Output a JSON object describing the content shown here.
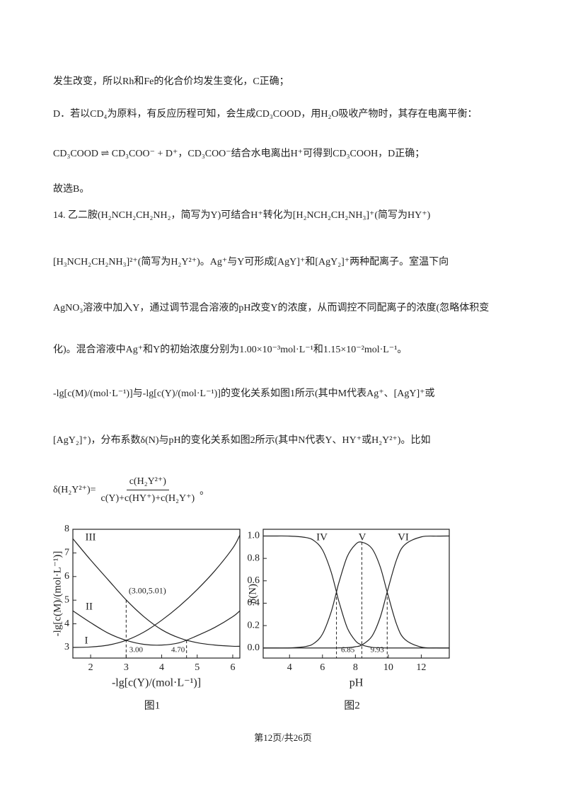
{
  "text": {
    "lines": [
      "发生改变，所以Rh和Fe的化合价均发生变化，C正确；",
      "D．若以CD₄为原料，有反应历程可知，会生成CD₃COOD，用H₂O吸收产物时，其存在电离平衡：",
      "CD₃COOD ⇌ CD₃COO⁻ + D⁺，CD₃COO⁻结合水电离出H⁺可得到CD₃COOH，D正确；",
      "故选B。",
      "14. 乙二胺(H₂NCH₂CH₂NH₂，简写为Y)可结合H⁺转化为[H₂NCH₂CH₂NH₃]⁺(简写为HY⁺)",
      "[H₃NCH₂CH₂NH₃]²⁺(简写为H₂Y²⁺)。Ag⁺与Y可形成[AgY]⁺和[AgY₂]⁺两种配离子。室温下向",
      "AgNO₃溶液中加入Y，通过调节混合溶液的pH改变Y的浓度，从而调控不同配离子的浓度(忽略体积变",
      "化)。混合溶液中Ag⁺和Y的初始浓度分别为1.00×10⁻³mol·L⁻¹和1.15×10⁻²mol·L⁻¹。",
      "-lg[c(M)/(mol·L⁻¹)]与-lg[c(Y)/(mol·L⁻¹)]的变化关系如图1所示(其中M代表Ag⁺、[AgY]⁺或",
      "[AgY₂]⁺)，分布系数δ(N)与pH的变化关系如图2所示(其中N代表Y、HY⁺或H₂Y²⁺)。比如"
    ],
    "formula": {
      "lhs": "δ(H₂Y²⁺)=",
      "numerator": "c(H₂Y²⁺)",
      "denominator": "c(Y)+c(HY⁺)+c(H₂Y⁺)",
      "end": "。"
    }
  },
  "chart_data": [
    {
      "type": "line",
      "xlabel": "-lg[c(Y)/(mol·L⁻¹)]",
      "ylabel": "-lg[c(M)/(mol·L⁻¹)]",
      "caption": "图1",
      "xlim": [
        1.5,
        6.2
      ],
      "ylim": [
        2.55,
        8
      ],
      "xticks": [
        2,
        3,
        4,
        5,
        6
      ],
      "yticks": [
        3,
        4,
        5,
        6,
        7,
        8
      ],
      "x": [
        1.5,
        2,
        2.5,
        3,
        3.5,
        4,
        4.5,
        5,
        5.5,
        6,
        6.2
      ],
      "series": [
        {
          "name": "I",
          "color": "#222222",
          "values": [
            3.0,
            3.02,
            3.1,
            3.3,
            3.65,
            4.15,
            4.75,
            5.45,
            6.25,
            7.2,
            7.75
          ]
        },
        {
          "name": "II",
          "color": "#222222",
          "values": [
            4.55,
            4.05,
            3.6,
            3.3,
            3.13,
            3.1,
            3.2,
            3.5,
            3.85,
            4.3,
            4.55
          ]
        },
        {
          "name": "III",
          "color": "#222222",
          "values": [
            7.6,
            6.7,
            5.85,
            5.01,
            4.3,
            3.75,
            3.4,
            3.2,
            3.1,
            3.05,
            3.05
          ]
        }
      ],
      "vlines": [
        {
          "x": 3,
          "y": 5.01,
          "label": "3.00"
        },
        {
          "x": 4.7,
          "y": 3.3,
          "label": "4.70"
        }
      ],
      "point_label": {
        "x": 3,
        "y": 5.01,
        "text": "(3.00,5.01)"
      }
    },
    {
      "type": "line",
      "xlabel": "pH",
      "ylabel": "δ(N)",
      "caption": "图2",
      "xlim": [
        2.4,
        13.7
      ],
      "ylim": [
        -0.09,
        1.06
      ],
      "xticks": [
        4,
        6,
        8,
        10,
        12
      ],
      "yticks": [
        {
          "value": 0,
          "label": "0.0"
        },
        0.2,
        0.4,
        0.6,
        0.8,
        {
          "value": 1,
          "label": "1.0"
        }
      ],
      "x": [
        2.4,
        3,
        4,
        5,
        5.5,
        6,
        6.5,
        6.85,
        7,
        7.5,
        8,
        8.39,
        9,
        9.5,
        9.93,
        10.5,
        11,
        12,
        13,
        13.7
      ],
      "series": [
        {
          "name": "IV",
          "color": "#222222",
          "values": [
            1.0,
            1.0,
            0.999,
            0.986,
            0.957,
            0.876,
            0.691,
            0.5,
            0.414,
            0.182,
            0.065,
            0.027,
            0.006,
            0.002,
            0.0,
            0.0,
            0.0,
            0.0,
            0.0,
            0.0
          ]
        },
        {
          "name": "V",
          "color": "#222222",
          "values": [
            0.0,
            0.0,
            0.001,
            0.014,
            0.043,
            0.124,
            0.309,
            0.5,
            0.585,
            0.815,
            0.924,
            0.945,
            0.889,
            0.728,
            0.5,
            0.212,
            0.078,
            0.008,
            0.001,
            0.0
          ]
        },
        {
          "name": "VI",
          "color": "#222222",
          "values": [
            0.0,
            0.0,
            0.0,
            0.0,
            0.0,
            0.0,
            0.0,
            0.0,
            0.001,
            0.003,
            0.011,
            0.027,
            0.104,
            0.271,
            0.5,
            0.788,
            0.922,
            0.992,
            0.999,
            1.0
          ]
        }
      ],
      "vlines": [
        {
          "x": 6.85,
          "y": 0.5,
          "label": "6.85"
        },
        {
          "x": 8.39,
          "y": 0.945
        },
        {
          "x": 9.93,
          "y": 0.5,
          "label": "9.93"
        }
      ]
    }
  ],
  "footer": "第12页/共26页"
}
